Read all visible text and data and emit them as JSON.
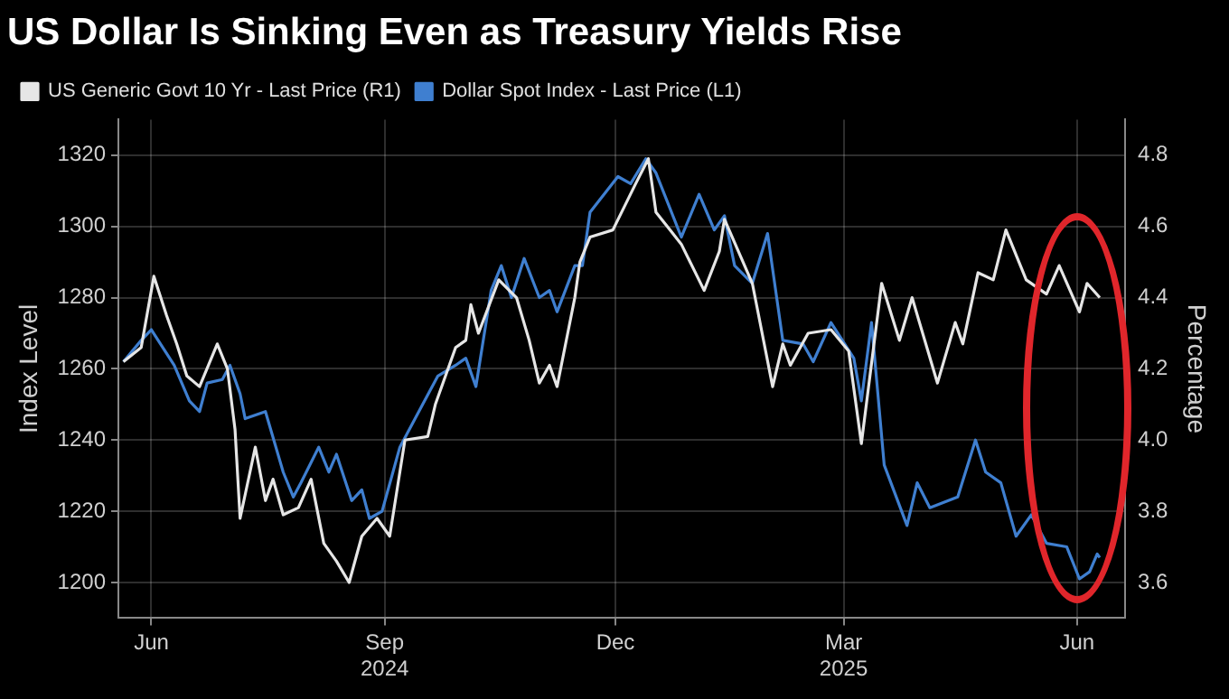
{
  "chart_data": {
    "type": "line",
    "title": "US Dollar Is Sinking Even as Treasury Yields Rise",
    "ylabel": "Index Level",
    "y2label": "Percentage",
    "xlim": [
      "2024-05-19",
      "2025-06-20"
    ],
    "xticks": [
      {
        "value": "2024-06-01",
        "label": "Jun"
      },
      {
        "value": "2024-09-01",
        "label": "Sep\n2024"
      },
      {
        "value": "2024-12-01",
        "label": "Dec"
      },
      {
        "value": "2025-03-01",
        "label": "Mar\n2025"
      },
      {
        "value": "2025-06-01",
        "label": "Jun"
      }
    ],
    "ylim": [
      1190,
      1330
    ],
    "yticks": [
      1200,
      1220,
      1240,
      1260,
      1280,
      1300,
      1320
    ],
    "y2lim": [
      3.5,
      4.9
    ],
    "y2ticks": [
      3.6,
      3.8,
      {
        "value": 4,
        "label": "4.0"
      },
      4.2,
      4.4,
      4.6,
      4.8
    ],
    "grid": true,
    "legend": "top left",
    "marker": "none",
    "line_style": "solid",
    "series": [
      {
        "name": "US Generic Govt 10 Yr - Last Price (R1)",
        "color": "#e6e6e6",
        "axis": "y2",
        "x": [
          "2024-05-21",
          "2024-05-28",
          "2024-06-02",
          "2024-06-07",
          "2024-06-11",
          "2024-06-15",
          "2024-06-20",
          "2024-06-27",
          "2024-07-01",
          "2024-07-04",
          "2024-07-06",
          "2024-07-12",
          "2024-07-16",
          "2024-07-19",
          "2024-07-23",
          "2024-07-29",
          "2024-08-03",
          "2024-08-08",
          "2024-08-13",
          "2024-08-18",
          "2024-08-23",
          "2024-08-29",
          "2024-09-03",
          "2024-09-09",
          "2024-09-18",
          "2024-09-21",
          "2024-09-29",
          "2024-10-03",
          "2024-10-05",
          "2024-10-08",
          "2024-10-16",
          "2024-10-23",
          "2024-10-28",
          "2024-11-01",
          "2024-11-05",
          "2024-11-08",
          "2024-11-15",
          "2024-11-17",
          "2024-11-21",
          "2024-11-30",
          "2024-12-09",
          "2024-12-14",
          "2024-12-17",
          "2024-12-27",
          "2025-01-05",
          "2025-01-11",
          "2025-01-13",
          "2025-01-24",
          "2025-02-01",
          "2025-02-05",
          "2025-02-08",
          "2025-02-15",
          "2025-02-24",
          "2025-03-03",
          "2025-03-08",
          "2025-03-16",
          "2025-03-23",
          "2025-03-28",
          "2025-04-07",
          "2025-04-14",
          "2025-04-17",
          "2025-04-23",
          "2025-04-29",
          "2025-05-04",
          "2025-05-12",
          "2025-05-20",
          "2025-05-25",
          "2025-06-02",
          "2025-06-05",
          "2025-06-10"
        ],
        "values": [
          4.22,
          4.26,
          4.46,
          4.35,
          4.27,
          4.18,
          4.15,
          4.27,
          4.2,
          4.03,
          3.78,
          3.98,
          3.83,
          3.89,
          3.79,
          3.81,
          3.89,
          3.71,
          3.66,
          3.6,
          3.73,
          3.78,
          3.73,
          4.0,
          4.01,
          4.1,
          4.26,
          4.28,
          4.38,
          4.3,
          4.45,
          4.4,
          4.28,
          4.16,
          4.21,
          4.15,
          4.4,
          4.5,
          4.57,
          4.59,
          4.72,
          4.79,
          4.64,
          4.55,
          4.42,
          4.53,
          4.62,
          4.44,
          4.15,
          4.27,
          4.21,
          4.3,
          4.31,
          4.25,
          3.99,
          4.44,
          4.28,
          4.4,
          4.16,
          4.33,
          4.27,
          4.47,
          4.45,
          4.59,
          4.45,
          4.41,
          4.49,
          4.36,
          4.44,
          4.4
        ]
      },
      {
        "name": "Dollar Spot Index - Last Price (L1)",
        "color": "#3f7fd0",
        "axis": "y",
        "x": [
          "2024-05-21",
          "2024-05-28",
          "2024-06-01",
          "2024-06-10",
          "2024-06-16",
          "2024-06-20",
          "2024-06-23",
          "2024-06-29",
          "2024-07-02",
          "2024-07-06",
          "2024-07-08",
          "2024-07-16",
          "2024-07-23",
          "2024-07-27",
          "2024-07-30",
          "2024-08-06",
          "2024-08-10",
          "2024-08-13",
          "2024-08-19",
          "2024-08-23",
          "2024-08-26",
          "2024-08-31",
          "2024-09-07",
          "2024-09-16",
          "2024-09-22",
          "2024-09-29",
          "2024-10-03",
          "2024-10-07",
          "2024-10-13",
          "2024-10-17",
          "2024-10-21",
          "2024-10-26",
          "2024-11-01",
          "2024-11-05",
          "2024-11-08",
          "2024-11-15",
          "2024-11-18",
          "2024-11-21",
          "2024-12-02",
          "2024-12-07",
          "2024-12-13",
          "2024-12-17",
          "2024-12-27",
          "2025-01-03",
          "2025-01-09",
          "2025-01-13",
          "2025-01-17",
          "2025-01-24",
          "2025-01-30",
          "2025-02-05",
          "2025-02-13",
          "2025-02-17",
          "2025-02-24",
          "2025-03-05",
          "2025-03-08",
          "2025-03-12",
          "2025-03-17",
          "2025-03-26",
          "2025-03-30",
          "2025-04-04",
          "2025-04-15",
          "2025-04-22",
          "2025-04-26",
          "2025-05-02",
          "2025-05-08",
          "2025-05-14",
          "2025-05-20",
          "2025-05-28",
          "2025-06-02",
          "2025-06-06",
          "2025-06-09",
          "2025-06-10"
        ],
        "values": [
          1262,
          1268,
          1271,
          1261,
          1251,
          1248,
          1256,
          1257,
          1261,
          1253,
          1246,
          1248,
          1231,
          1224,
          1228,
          1238,
          1231,
          1236,
          1223,
          1226,
          1218,
          1220,
          1238,
          1250,
          1258,
          1261,
          1263,
          1255,
          1282,
          1289,
          1280,
          1291,
          1280,
          1282,
          1276,
          1289,
          1289,
          1304,
          1314,
          1312,
          1319,
          1315,
          1297,
          1309,
          1299,
          1303,
          1289,
          1284,
          1298,
          1268,
          1267,
          1262,
          1273,
          1263,
          1251,
          1273,
          1233,
          1216,
          1228,
          1221,
          1224,
          1240,
          1231,
          1228,
          1213,
          1219,
          1211,
          1210,
          1201,
          1203,
          1208,
          1207
        ]
      }
    ]
  }
}
